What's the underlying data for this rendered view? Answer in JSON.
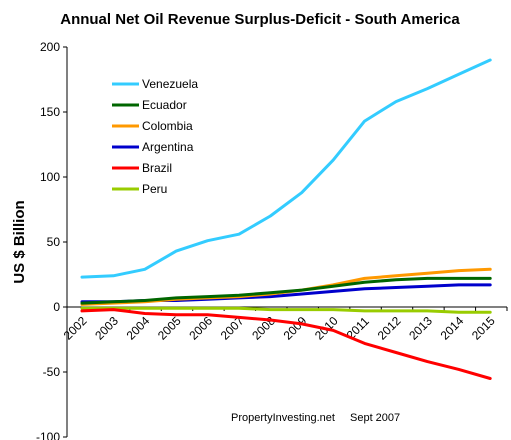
{
  "chart_data": {
    "type": "line",
    "title": "Annual Net Oil Revenue Surplus-Deficit - South America",
    "xlabel": "",
    "ylabel": "US $ Billion",
    "x": [
      "2002",
      "2003",
      "2004",
      "2005",
      "2006",
      "2007",
      "2008",
      "2009",
      "2010",
      "2011",
      "2012",
      "2013",
      "2014",
      "2015"
    ],
    "ylim": [
      -100,
      200
    ],
    "yticks": [
      -100,
      -50,
      0,
      50,
      100,
      150,
      200
    ],
    "grid": false,
    "legend_placement": "top-left",
    "series": [
      {
        "name": "Venezuela",
        "color": "#33ccff",
        "values": [
          23,
          24,
          29,
          43,
          51,
          56,
          70,
          88,
          113,
          143,
          158,
          168,
          179,
          190
        ]
      },
      {
        "name": "Ecuador",
        "color": "#006600",
        "values": [
          3,
          4,
          5,
          7,
          8,
          9,
          11,
          13,
          16,
          19,
          21,
          22,
          22,
          22
        ]
      },
      {
        "name": "Colombia",
        "color": "#ff9900",
        "values": [
          2,
          3,
          4,
          6,
          7,
          8,
          10,
          13,
          17,
          22,
          24,
          26,
          28,
          29
        ]
      },
      {
        "name": "Argentina",
        "color": "#0000cc",
        "values": [
          4,
          4,
          5,
          5,
          6,
          7,
          8,
          10,
          12,
          14,
          15,
          16,
          17,
          17
        ]
      },
      {
        "name": "Brazil",
        "color": "#ff0000",
        "values": [
          -3,
          -2,
          -5,
          -6,
          -6,
          -8,
          -10,
          -13,
          -18,
          -28,
          -35,
          -42,
          -48,
          -55
        ]
      },
      {
        "name": "Peru",
        "color": "#99cc00",
        "values": [
          -1,
          -1,
          -1,
          -1,
          -1,
          -1,
          -2,
          -2,
          -2,
          -3,
          -3,
          -3,
          -4,
          -4
        ]
      }
    ],
    "annotations": [
      "PropertyInvesting.net",
      "Sept 2007"
    ]
  }
}
